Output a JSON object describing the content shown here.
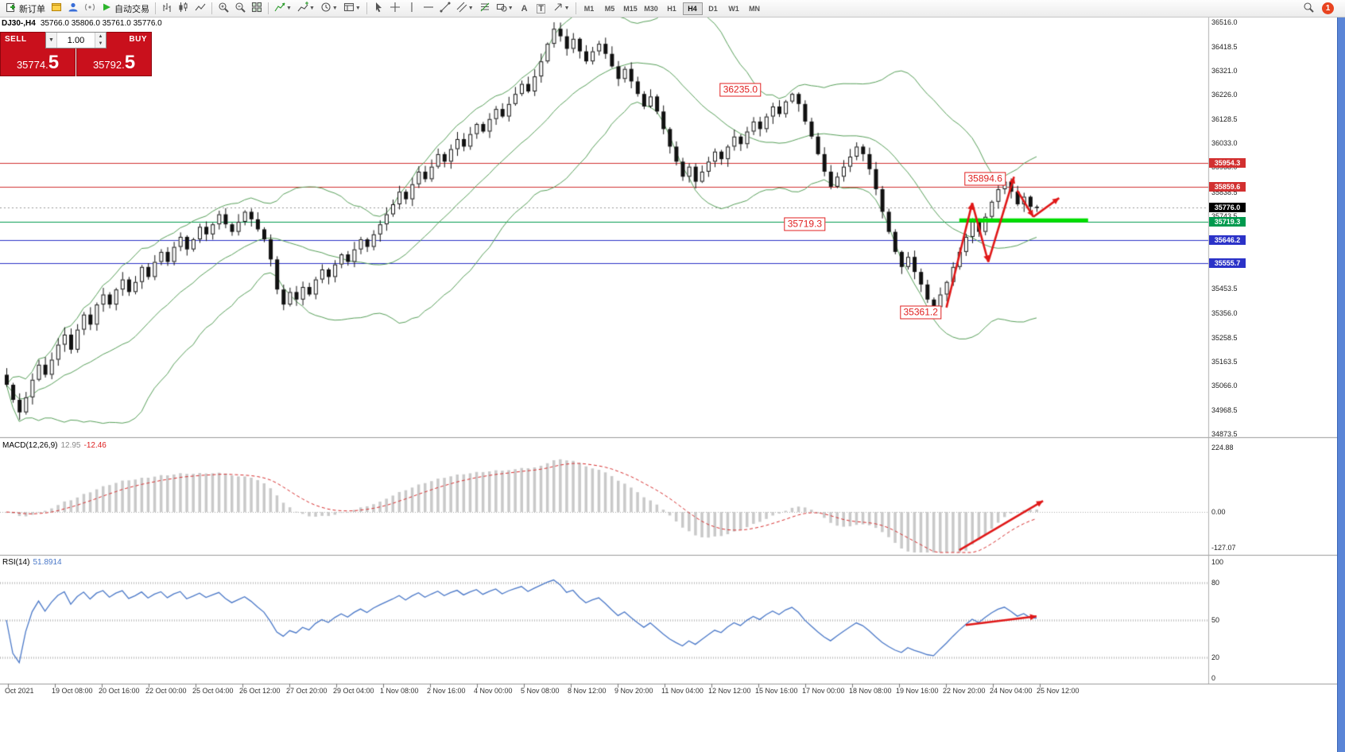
{
  "toolbar": {
    "new_order_label": "新订单",
    "autotrading_label": "自动交易",
    "timeframes": [
      "M1",
      "M5",
      "M15",
      "M30",
      "H1",
      "H4",
      "D1",
      "W1",
      "MN"
    ],
    "active_timeframe": "H4",
    "notification_count": "1"
  },
  "chart": {
    "symbol_period": "DJ30-,H4",
    "ohlc": "35766.0 35806.0 35761.0 35776.0"
  },
  "trade_panel": {
    "sell_label": "SELL",
    "buy_label": "BUY",
    "volume": "1.00",
    "sell_price_main": "35774.",
    "sell_price_pips": "5",
    "buy_price_main": "35792.",
    "buy_price_pips": "5"
  },
  "macd": {
    "name": "MACD(12,26,9)",
    "main_value": "12.95",
    "signal_value": "-12.46",
    "axis": [
      "224.88",
      "0.00",
      "-127.07"
    ],
    "arrow": {
      "from": [
        148,
        -120
      ],
      "to": [
        161,
        35
      ]
    }
  },
  "rsi": {
    "name": "RSI(14)",
    "value": "51.8914",
    "axis": [
      "100",
      "80",
      "50",
      "20",
      "0"
    ],
    "levels": [
      80,
      50,
      20
    ],
    "arrow": {
      "from": [
        149,
        46
      ],
      "to": [
        160,
        53
      ]
    }
  },
  "chart_data": {
    "type": "candlestick",
    "symbol": "DJ30-",
    "timeframe": "H4",
    "price_range": [
      34873.5,
      36516.0
    ],
    "price_ticks": [
      "36516.0",
      "36418.5",
      "36321.0",
      "36226.0",
      "36128.5",
      "36033.0",
      "35938.0",
      "35838.5",
      "35743.5",
      "35453.5",
      "35356.0",
      "35258.5",
      "35163.5",
      "35066.0",
      "34968.5",
      "34873.5"
    ],
    "closes": [
      35070,
      35010,
      34960,
      35020,
      35090,
      35150,
      35110,
      35170,
      35230,
      35270,
      35210,
      35290,
      35350,
      35310,
      35390,
      35430,
      35390,
      35450,
      35490,
      35440,
      35480,
      35540,
      35500,
      35560,
      35600,
      35560,
      35620,
      35660,
      35610,
      35650,
      35700,
      35670,
      35710,
      35750,
      35710,
      35680,
      35720,
      35760,
      35730,
      35690,
      35650,
      35570,
      35450,
      35390,
      35440,
      35410,
      35460,
      35430,
      35490,
      35530,
      35500,
      35550,
      35590,
      35560,
      35610,
      35650,
      35620,
      35670,
      35710,
      35750,
      35790,
      35840,
      35810,
      35870,
      35920,
      35890,
      35940,
      35990,
      35960,
      36010,
      36050,
      36020,
      36070,
      36110,
      36080,
      36130,
      36170,
      36140,
      36190,
      36230,
      36270,
      36240,
      36300,
      36360,
      36430,
      36490,
      36460,
      36410,
      36450,
      36400,
      36360,
      36400,
      36430,
      36390,
      36340,
      36290,
      36330,
      36280,
      36230,
      36180,
      36220,
      36160,
      36090,
      36020,
      35960,
      35900,
      35940,
      35880,
      35920,
      35960,
      36000,
      35970,
      36020,
      36060,
      36030,
      36080,
      36120,
      36090,
      36140,
      36180,
      36150,
      36200,
      36230,
      36190,
      36120,
      36060,
      35990,
      35920,
      35860,
      35900,
      35940,
      35980,
      36020,
      35990,
      35930,
      35850,
      35760,
      35680,
      35600,
      35540,
      35580,
      35520,
      35470,
      35410,
      35380,
      35430,
      35480,
      35540,
      35600,
      35660,
      35720,
      35680,
      35740,
      35800,
      35850,
      35880,
      35840,
      35790,
      35820,
      35780,
      35776
    ],
    "wick_overrides": {
      "85": {
        "high": 36516.0
      },
      "122": {
        "high": 36235.0
      },
      "144": {
        "low": 35361.2
      },
      "155": {
        "high": 35894.6
      }
    },
    "bollinger": {
      "period": 20,
      "deviation": 2
    },
    "hlines": [
      {
        "price": 35954.3,
        "label": "35954.3",
        "color": "#d23030"
      },
      {
        "price": 35859.6,
        "label": "35859.6",
        "color": "#d23030"
      },
      {
        "price": 35719.3,
        "label": "35719.3",
        "color": "#009a4e"
      },
      {
        "price": 35646.2,
        "label": "35646.2",
        "color": "#2b32c8"
      },
      {
        "price": 35555.7,
        "label": "35555.7",
        "color": "#2b32c8"
      }
    ],
    "current_price": 35776.0,
    "current_price_label": "35776.0",
    "thick_segment": {
      "price": 35726,
      "from_candle": 148,
      "to_candle": 168,
      "color": "#00dd00",
      "width": 5
    },
    "annotations": [
      {
        "text": "36235.0",
        "candle": 114,
        "price": 36245
      },
      {
        "text": "35894.6",
        "candle": 152,
        "price": 35892
      },
      {
        "text": "35719.3",
        "candle": 124,
        "price": 35712
      },
      {
        "text": "35361.2",
        "candle": 142,
        "price": 35360
      }
    ],
    "arrows": [
      {
        "from": [
          146,
          35378
        ],
        "to": [
          150,
          35795
        ]
      },
      {
        "from": [
          150,
          35795
        ],
        "to": [
          152.5,
          35560
        ]
      },
      {
        "from": [
          152.5,
          35560
        ],
        "to": [
          156.5,
          35900
        ]
      },
      {
        "from": [
          157,
          35845
        ],
        "to": [
          159.5,
          35740
        ]
      },
      {
        "from": [
          159.5,
          35740
        ],
        "to": [
          163.5,
          35815
        ]
      }
    ],
    "time_labels": [
      "Oct 2021",
      "19 Oct 08:00",
      "20 Oct 16:00",
      "22 Oct 00:00",
      "25 Oct 04:00",
      "26 Oct 12:00",
      "27 Oct 20:00",
      "29 Oct 04:00",
      "1 Nov 08:00",
      "2 Nov 16:00",
      "4 Nov 00:00",
      "5 Nov 08:00",
      "8 Nov 12:00",
      "9 Nov 20:00",
      "11 Nov 04:00",
      "12 Nov 12:00",
      "15 Nov 16:00",
      "17 Nov 00:00",
      "18 Nov 08:00",
      "19 Nov 16:00",
      "22 Nov 20:00",
      "24 Nov 04:00",
      "25 Nov 12:00"
    ],
    "colors": {
      "band": "#58a05a",
      "candle_up": "#ffffff",
      "candle_down": "#111111",
      "candle_border": "#111111",
      "arrow": "#e01818",
      "histogram": "#c9c9c9",
      "signal": "#d83030",
      "rsi": "#4a78c8",
      "scrollbar": "#5a85d7"
    }
  }
}
